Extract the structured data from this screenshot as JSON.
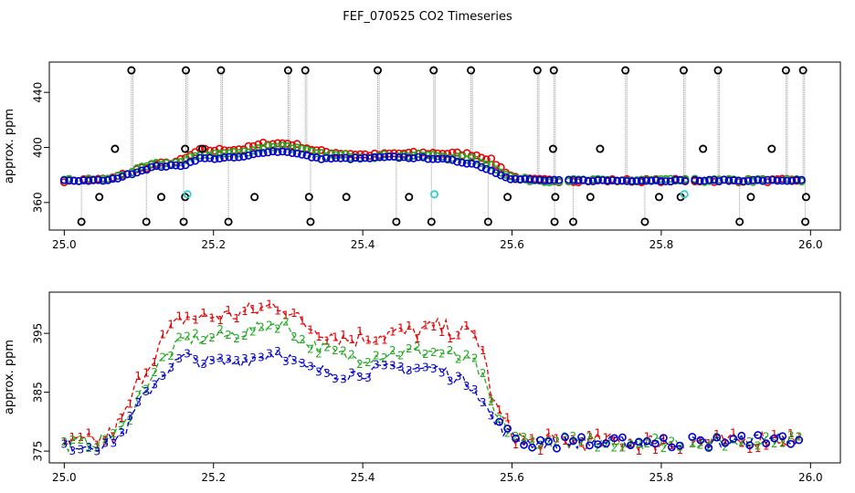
{
  "title": "FEF_070525  CO2 Timeseries",
  "colors": {
    "s1": "#e60000",
    "s2": "#22aa22",
    "s3": "#0000cc",
    "outlier": "#000000",
    "cyan": "#33cccc",
    "drop": "#999999"
  },
  "chart_data": [
    {
      "type": "scatter",
      "title": "",
      "xlabel": "",
      "ylabel": "approx. ppm",
      "xlim": [
        24.98,
        26.04
      ],
      "ylim": [
        340,
        462
      ],
      "x_ticks": [
        25.0,
        25.2,
        25.4,
        25.6,
        25.8,
        26.0
      ],
      "x_tick_labels": [
        "25.0",
        "25.2",
        "25.4",
        "25.6",
        "25.8",
        "26.0"
      ],
      "y_ticks": [
        360,
        400,
        440
      ],
      "y_tick_labels": [
        "360",
        "400",
        "440"
      ],
      "baseline_knots": [
        [
          25.0,
          376
        ],
        [
          25.06,
          376
        ],
        [
          25.12,
          386
        ],
        [
          25.16,
          387
        ],
        [
          25.18,
          392
        ],
        [
          25.2,
          392
        ],
        [
          25.24,
          393
        ],
        [
          25.27,
          397
        ],
        [
          25.3,
          397
        ],
        [
          25.34,
          392
        ],
        [
          25.4,
          392
        ],
        [
          25.44,
          393
        ],
        [
          25.5,
          392
        ],
        [
          25.55,
          388
        ],
        [
          25.6,
          377
        ],
        [
          25.65,
          376
        ],
        [
          25.99,
          376
        ]
      ],
      "gaps": [
        [
          25.665,
          25.67
        ],
        [
          25.836,
          25.84
        ]
      ],
      "series": [
        {
          "key": "1",
          "color": "#e60000",
          "offset": [
            [
              25.0,
              0
            ],
            [
              25.14,
              2
            ],
            [
              25.18,
              6
            ],
            [
              25.32,
              6
            ],
            [
              25.42,
              2
            ],
            [
              25.5,
              4
            ],
            [
              25.57,
              8
            ],
            [
              25.6,
              2
            ],
            [
              25.62,
              0
            ]
          ]
        },
        {
          "key": "2",
          "color": "#22aa22",
          "offset": [
            [
              25.0,
              0
            ],
            [
              25.14,
              2
            ],
            [
              25.18,
              3
            ],
            [
              25.3,
              4
            ],
            [
              25.42,
              1
            ],
            [
              25.5,
              2
            ],
            [
              25.57,
              4
            ],
            [
              25.6,
              1
            ],
            [
              25.62,
              0
            ]
          ]
        },
        {
          "key": "3",
          "color": "#0000cc",
          "offset": [
            [
              25.0,
              0
            ],
            [
              26.0,
              0
            ]
          ]
        }
      ],
      "outliers_high": [
        25.09,
        25.163,
        25.21,
        25.3,
        25.323,
        25.42,
        25.495,
        25.545,
        25.634,
        25.656,
        25.752,
        25.83,
        25.876,
        25.967,
        25.99
      ],
      "outliers_low": [
        25.023,
        25.11,
        25.16,
        25.22,
        25.33,
        25.445,
        25.492,
        25.568,
        25.657,
        25.682,
        25.778,
        25.905,
        25.993
      ],
      "outliers_mid_high": [
        [
          25.068,
          399
        ],
        [
          25.162,
          399
        ],
        [
          25.185,
          399
        ],
        [
          25.655,
          399
        ],
        [
          25.718,
          399
        ],
        [
          25.856,
          399
        ],
        [
          25.948,
          399
        ]
      ],
      "outliers_mid_low": [
        [
          25.047,
          364
        ],
        [
          25.13,
          364
        ],
        [
          25.162,
          364
        ],
        [
          25.255,
          364
        ],
        [
          25.328,
          364
        ],
        [
          25.378,
          364
        ],
        [
          25.462,
          364
        ],
        [
          25.594,
          364
        ],
        [
          25.658,
          364
        ],
        [
          25.705,
          364
        ],
        [
          25.797,
          364
        ],
        [
          25.826,
          364
        ],
        [
          25.92,
          364
        ],
        [
          25.994,
          364
        ]
      ],
      "cyan_points": [
        [
          25.165,
          366
        ],
        [
          25.496,
          366
        ],
        [
          25.831,
          366
        ]
      ]
    },
    {
      "type": "line",
      "title": "",
      "xlabel": "",
      "ylabel": "approx. ppm",
      "xlim": [
        24.98,
        26.04
      ],
      "ylim": [
        373,
        402
      ],
      "x_ticks": [
        25.0,
        25.2,
        25.4,
        25.6,
        25.8,
        26.0
      ],
      "x_tick_labels": [
        "25.0",
        "25.2",
        "25.4",
        "25.6",
        "25.8",
        "26.0"
      ],
      "y_ticks": [
        375,
        385,
        395
      ],
      "y_tick_labels": [
        "375",
        "385",
        "395"
      ],
      "knots_base": [
        [
          25.0,
          376
        ],
        [
          25.05,
          376
        ],
        [
          25.08,
          378
        ],
        [
          25.1,
          383
        ],
        [
          25.13,
          388
        ],
        [
          25.16,
          391
        ],
        [
          25.19,
          390
        ],
        [
          25.22,
          390
        ],
        [
          25.26,
          391
        ],
        [
          25.29,
          392
        ],
        [
          25.32,
          389
        ],
        [
          25.38,
          388
        ],
        [
          25.44,
          389
        ],
        [
          25.5,
          389
        ],
        [
          25.55,
          386
        ],
        [
          25.575,
          380
        ],
        [
          25.6,
          377.5
        ],
        [
          25.62,
          376.5
        ],
        [
          25.9,
          376.5
        ],
        [
          25.95,
          377.3
        ],
        [
          25.99,
          377
        ]
      ],
      "gaps": [
        [
          25.665,
          25.67
        ],
        [
          25.836,
          25.84
        ]
      ],
      "series": [
        {
          "key": "1",
          "color": "#e60000",
          "offset": [
            [
              25.0,
              0
            ],
            [
              25.06,
              1
            ],
            [
              25.1,
              4
            ],
            [
              25.14,
              6
            ],
            [
              25.2,
              8
            ],
            [
              25.3,
              8
            ],
            [
              25.38,
              6
            ],
            [
              25.46,
              6
            ],
            [
              25.5,
              7
            ],
            [
              25.56,
              9
            ],
            [
              25.575,
              3
            ],
            [
              25.6,
              0.5
            ],
            [
              25.62,
              0
            ]
          ]
        },
        {
          "key": "2",
          "color": "#22aa22",
          "offset": [
            [
              25.0,
              0
            ],
            [
              25.08,
              1
            ],
            [
              25.12,
              2
            ],
            [
              25.16,
              3
            ],
            [
              25.2,
              4.5
            ],
            [
              25.3,
              5
            ],
            [
              25.4,
              2.5
            ],
            [
              25.5,
              3
            ],
            [
              25.56,
              4
            ],
            [
              25.58,
              1
            ],
            [
              25.62,
              0
            ]
          ]
        },
        {
          "key": "3",
          "color": "#0000cc",
          "offset": [
            [
              25.0,
              0
            ],
            [
              26.0,
              0
            ]
          ]
        }
      ],
      "marker_series": "3"
    }
  ]
}
